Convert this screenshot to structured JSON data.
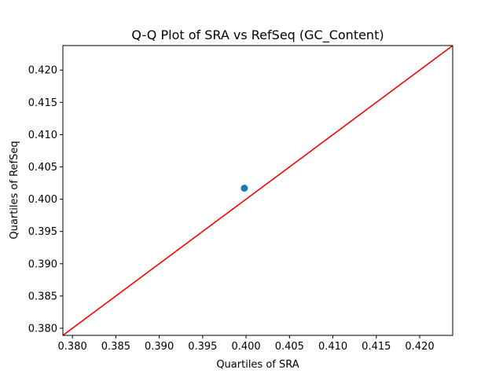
{
  "chart_data": {
    "type": "scatter",
    "title": "Q-Q Plot of SRA vs RefSeq (GC_Content)",
    "xlabel": "Quartiles of SRA",
    "ylabel": "Quartiles of RefSeq",
    "xlim": [
      0.3789,
      0.4238
    ],
    "ylim": [
      0.3789,
      0.4238
    ],
    "xticks": [
      "0.380",
      "0.385",
      "0.390",
      "0.395",
      "0.400",
      "0.405",
      "0.410",
      "0.415",
      "0.420"
    ],
    "yticks": [
      "0.380",
      "0.385",
      "0.390",
      "0.395",
      "0.400",
      "0.405",
      "0.410",
      "0.415",
      "0.420"
    ],
    "grid": false,
    "series": [
      {
        "points": [
          {
            "x": 0.3998,
            "y": 0.4017
          }
        ],
        "color": "#1f77b4"
      }
    ],
    "reference_line": {
      "from": [
        0.3789,
        0.3789
      ],
      "to": [
        0.4238,
        0.4238
      ],
      "color": "#ff0000"
    }
  }
}
